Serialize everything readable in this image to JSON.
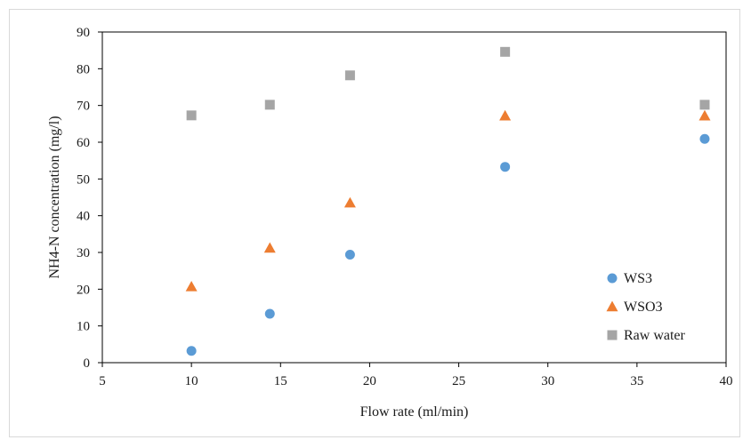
{
  "chart_data": {
    "type": "scatter",
    "title": "",
    "xlabel": "Flow rate (ml/min)",
    "ylabel": "NH4-N concentration (mg/l)",
    "xlim": [
      5,
      40
    ],
    "ylim": [
      0,
      90
    ],
    "xticks": [
      5,
      10,
      15,
      20,
      25,
      30,
      35,
      40
    ],
    "yticks": [
      0,
      10,
      20,
      30,
      40,
      50,
      60,
      70,
      80,
      90
    ],
    "grid": false,
    "legend_position": "bottom-right",
    "series": [
      {
        "name": "WS3",
        "marker": "circle",
        "color": "#5b9bd5",
        "x": [
          10,
          14.4,
          18.9,
          27.6,
          38.8
        ],
        "y": [
          3.2,
          13.3,
          29.4,
          53.3,
          60.9
        ]
      },
      {
        "name": "WSO3",
        "marker": "triangle",
        "color": "#ed7d31",
        "x": [
          10,
          14.4,
          18.9,
          27.6,
          38.8
        ],
        "y": [
          20.7,
          31.2,
          43.5,
          67.2,
          67.2
        ]
      },
      {
        "name": "Raw water",
        "marker": "square",
        "color": "#a5a5a5",
        "x": [
          10,
          14.4,
          18.9,
          27.6,
          38.8
        ],
        "y": [
          67.3,
          70.2,
          78.2,
          84.6,
          70.2
        ]
      }
    ]
  }
}
